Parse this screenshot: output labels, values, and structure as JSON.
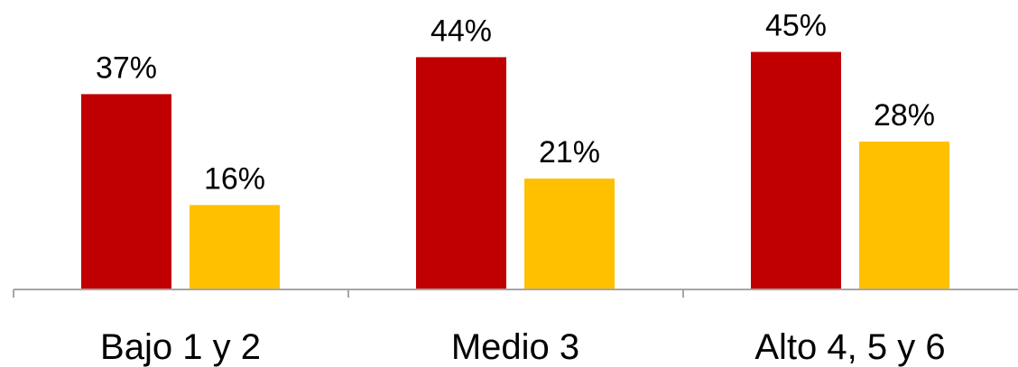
{
  "chart_data": {
    "type": "bar",
    "categories": [
      "Bajo 1 y 2",
      "Medio 3",
      "Alto 4, 5 y 6"
    ],
    "series": [
      {
        "values": [
          37,
          44,
          45
        ],
        "color": "#C00000"
      },
      {
        "values": [
          16,
          21,
          28
        ],
        "color": "#FFC000"
      }
    ],
    "value_labels": [
      [
        "37%",
        "44%",
        "45%"
      ],
      [
        "16%",
        "21%",
        "28%"
      ]
    ],
    "ylim": [
      0,
      48
    ],
    "grid": false,
    "legend": "none",
    "axis_color": "#A6A6A6"
  }
}
